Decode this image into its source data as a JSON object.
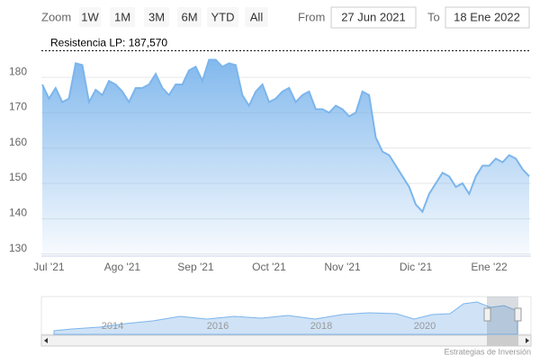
{
  "toolbar": {
    "zoom_label": "Zoom",
    "buttons": [
      "1W",
      "1M",
      "3M",
      "6M",
      "YTD",
      "All"
    ],
    "from_label": "From",
    "from_value": "27 Jun 2021",
    "to_label": "To",
    "to_value": "18 Ene 2022"
  },
  "chart_data": {
    "type": "area",
    "categories": [
      null,
      "Jul '21",
      null,
      null,
      null,
      null,
      null,
      null,
      null,
      null,
      null,
      null,
      "Ago '21",
      null,
      null,
      null,
      null,
      null,
      null,
      null,
      null,
      null,
      null,
      "Sep '21",
      null,
      null,
      null,
      null,
      null,
      null,
      null,
      null,
      null,
      null,
      "Oct '21",
      null,
      null,
      null,
      null,
      null,
      null,
      null,
      null,
      null,
      null,
      "Nov '21",
      null,
      null,
      null,
      null,
      null,
      null,
      null,
      null,
      null,
      null,
      "Dic '21",
      null,
      null,
      null,
      null,
      null,
      null,
      null,
      null,
      null,
      null,
      "Ene '22",
      null,
      null,
      null,
      null,
      null,
      null
    ],
    "values": [
      178,
      174,
      177,
      173,
      174,
      184,
      183.5,
      173,
      176.5,
      175,
      179,
      178,
      176,
      173,
      177,
      177,
      178,
      181,
      177,
      175,
      178,
      178,
      182,
      183,
      179,
      185,
      185,
      183,
      184,
      183.5,
      175,
      172,
      176,
      178,
      173,
      174,
      176,
      177,
      173,
      175,
      176,
      171,
      171,
      170,
      172,
      171,
      169,
      170,
      176,
      175,
      163,
      159,
      158,
      155,
      152,
      149,
      144,
      142,
      147,
      150,
      153,
      152,
      149,
      150,
      147,
      152,
      155,
      155,
      157,
      156,
      158,
      157,
      154,
      152
    ],
    "color": "#7cb5ec",
    "ylim": [
      129.4,
      189.7
    ],
    "yticks": [
      130,
      140,
      150,
      160,
      170,
      180
    ],
    "grid": true,
    "resistance": {
      "value": 187.57,
      "label": "Resistencia LP: 187,570"
    }
  },
  "navigator": {
    "labels": [
      "2014",
      "2016",
      "2018",
      "2020"
    ]
  },
  "credits": "Estrategias de Inversión"
}
